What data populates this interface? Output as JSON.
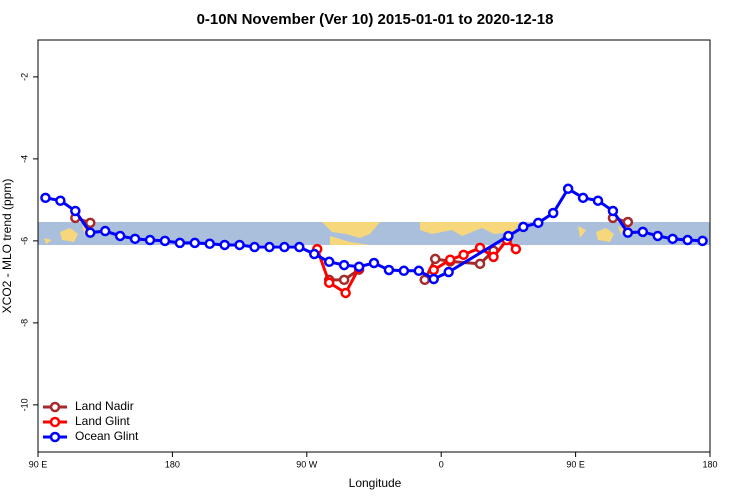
{
  "chart_data": {
    "type": "line",
    "title": "0-10N November (Ver 10)   2015-01-01 to 2020-12-18",
    "x_label": "Longitude",
    "y_label": "XCO2 - MLO trend (ppm)",
    "xlim": [
      90,
      540
    ],
    "ylim": [
      -11.15,
      -1.1
    ],
    "xticks": [
      {
        "value": 90,
        "label": "90 E"
      },
      {
        "value": 180,
        "label": "180"
      },
      {
        "value": 270,
        "label": "90 W"
      },
      {
        "value": 360,
        "label": "0"
      },
      {
        "value": 450,
        "label": "90 E"
      },
      {
        "value": 540,
        "label": "180"
      }
    ],
    "yticks": [
      -2,
      -4,
      -6,
      -8,
      -10
    ],
    "legend": "bottom-left",
    "series": [
      {
        "name": "Land Nadir",
        "color": "#a52a2a",
        "x": [
          115,
          125,
          200,
          285,
          295,
          305,
          330,
          349,
          356,
          366,
          386,
          395,
          440,
          475,
          485
        ],
        "values": [
          -5.44,
          -5.56,
          null,
          -6.95,
          -6.95,
          -6.7,
          null,
          -6.95,
          -6.44,
          -6.5,
          -6.56,
          -6.24,
          null,
          -5.44,
          -5.54
        ]
      },
      {
        "name": "Land Glint",
        "color": "#ff0000",
        "x": [
          277,
          285,
          296,
          305,
          330,
          355,
          366,
          375,
          386,
          395,
          404,
          410
        ],
        "values": [
          -6.2,
          -7.02,
          -7.27,
          -6.66,
          null,
          -6.71,
          -6.46,
          -6.34,
          -6.17,
          -6.39,
          -5.98,
          -6.2
        ]
      },
      {
        "name": "Ocean Glint",
        "color": "#0000ff",
        "x": [
          95,
          105,
          115,
          125,
          135,
          145,
          155,
          165,
          175,
          185,
          195,
          205,
          215,
          225,
          235,
          245,
          255,
          265,
          275,
          285,
          295,
          305,
          315,
          325,
          335,
          345,
          355,
          365,
          405,
          415,
          425,
          435,
          445,
          455,
          465,
          475,
          485,
          495,
          505,
          515,
          525,
          535
        ],
        "values": [
          -4.95,
          -5.02,
          -5.27,
          -5.8,
          -5.76,
          -5.88,
          -5.95,
          -5.98,
          -6.0,
          -6.05,
          -6.05,
          -6.07,
          -6.1,
          -6.1,
          -6.15,
          -6.15,
          -6.15,
          -6.15,
          -6.32,
          -6.51,
          -6.59,
          -6.63,
          -6.54,
          -6.71,
          -6.73,
          -6.73,
          -6.93,
          -6.76,
          -5.88,
          -5.66,
          -5.56,
          -5.32,
          -4.73,
          -4.95,
          -5.02,
          -5.27,
          -5.8,
          -5.78,
          -5.88,
          -5.95,
          -5.98,
          -6.0
        ]
      }
    ]
  }
}
